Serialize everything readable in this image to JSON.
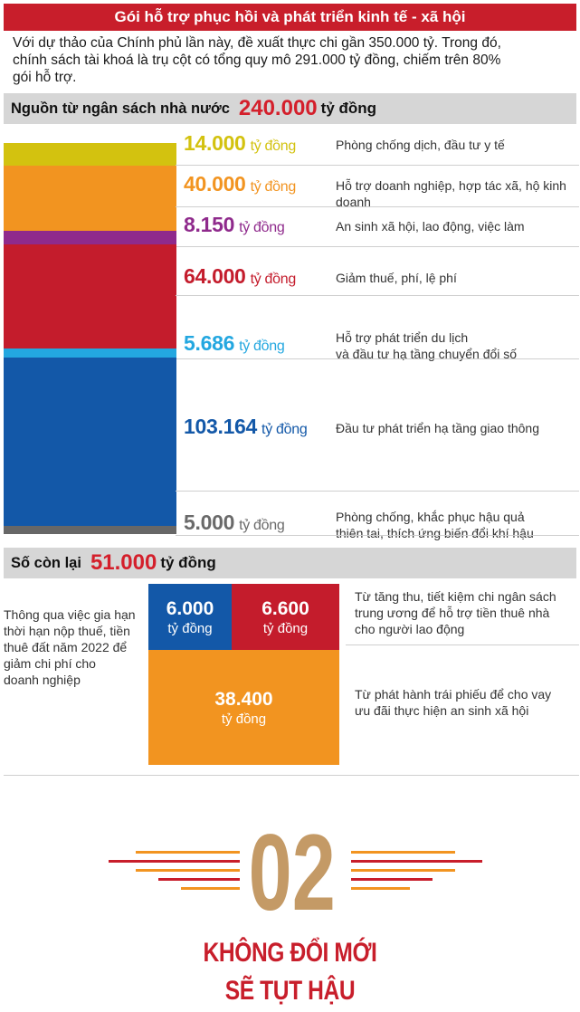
{
  "header": {
    "title": "Gói hỗ trợ phục hồi và phát triển kinh tế - xã hội",
    "intro_line1": "Với dự thảo của Chính phủ lần này, đề xuất thực chi gần 350.000 tỷ. Trong đó,",
    "intro_line2": "chính sách tài khoá là trụ cột có tổng quy mô 291.000 tỷ đồng, chiếm trên 80%",
    "intro_line3": "gói hỗ trợ."
  },
  "budget": {
    "label": "Nguồn từ ngân sách nhà nước",
    "value": "240.000",
    "unit": "tỷ đồng"
  },
  "chart_data": {
    "type": "bar",
    "categories": [
      "Phòng chống dịch, đầu tư y tế",
      "Hỗ trợ doanh nghiệp, hợp tác xã, hộ kinh doanh",
      "An sinh xã hội, lao động, việc làm",
      "Giảm thuế, phí, lệ phí",
      "Hỗ trợ phát triển du lịch và đầu tư hạ tầng chuyển đổi số",
      "Đầu tư phát triển hạ tầng giao thông",
      "Phòng chống, khắc phục hậu quả thiên tai, thích ứng biến đổi khí hậu"
    ],
    "values": [
      14000,
      40000,
      8150,
      64000,
      5686,
      103164,
      5000
    ],
    "labels": [
      "14.000",
      "40.000",
      "8.150",
      "64.000",
      "5.686",
      "103.164",
      "5.000"
    ],
    "unit": "tỷ đồng",
    "colors": [
      "#d3c20f",
      "#f29420",
      "#8f2a8c",
      "#c41c2c",
      "#23a7e0",
      "#1358a8",
      "#676767"
    ],
    "desc_lines": [
      [
        "Phòng chống dịch, đầu tư y tế"
      ],
      [
        "Hỗ trợ doanh nghiệp, hợp tác xã, hộ kinh doanh"
      ],
      [
        "An sinh xã hội, lao động, việc làm"
      ],
      [
        "Giảm thuế, phí, lệ phí"
      ],
      [
        "Hỗ trợ phát triển du lịch",
        "và đầu tư hạ tầng chuyển đổi số"
      ],
      [
        "Đầu tư phát triển hạ tầng giao thông"
      ],
      [
        "Phòng chống, khắc phục hậu quả",
        "thiên tai, thích ứng biến đổi khí hậu"
      ]
    ]
  },
  "remainder": {
    "label": "Số còn lại",
    "value": "51.000",
    "unit": "tỷ đồng",
    "boxes": [
      {
        "value": "6.000",
        "unit": "tỷ đồng",
        "color": "#1358a8"
      },
      {
        "value": "6.600",
        "unit": "tỷ đồng",
        "color": "#c41c2c"
      },
      {
        "value": "38.400",
        "unit": "tỷ đồng",
        "color": "#f29420"
      }
    ],
    "note_left": [
      "Thông qua việc gia hạn",
      "thời hạn nộp thuế, tiền",
      "thuê đất năm 2022 để",
      "giảm chi phí cho",
      "doanh nghiệp"
    ],
    "note_right_top": [
      "Từ tăng thu, tiết kiệm chi ngân sách",
      "trung ương để hỗ trợ tiền thuê nhà",
      "cho người lao động"
    ],
    "note_right_bottom": [
      "Từ phát hành trái phiếu để cho vay",
      "ưu đãi thực hiện an sinh xã hội"
    ]
  },
  "section": {
    "number": "02",
    "title_line1": "KHÔNG ĐỔI MỚI",
    "title_line2": "SẼ TỤT HẬU",
    "accent": "#c81e2b",
    "number_color": "#c49a66"
  }
}
